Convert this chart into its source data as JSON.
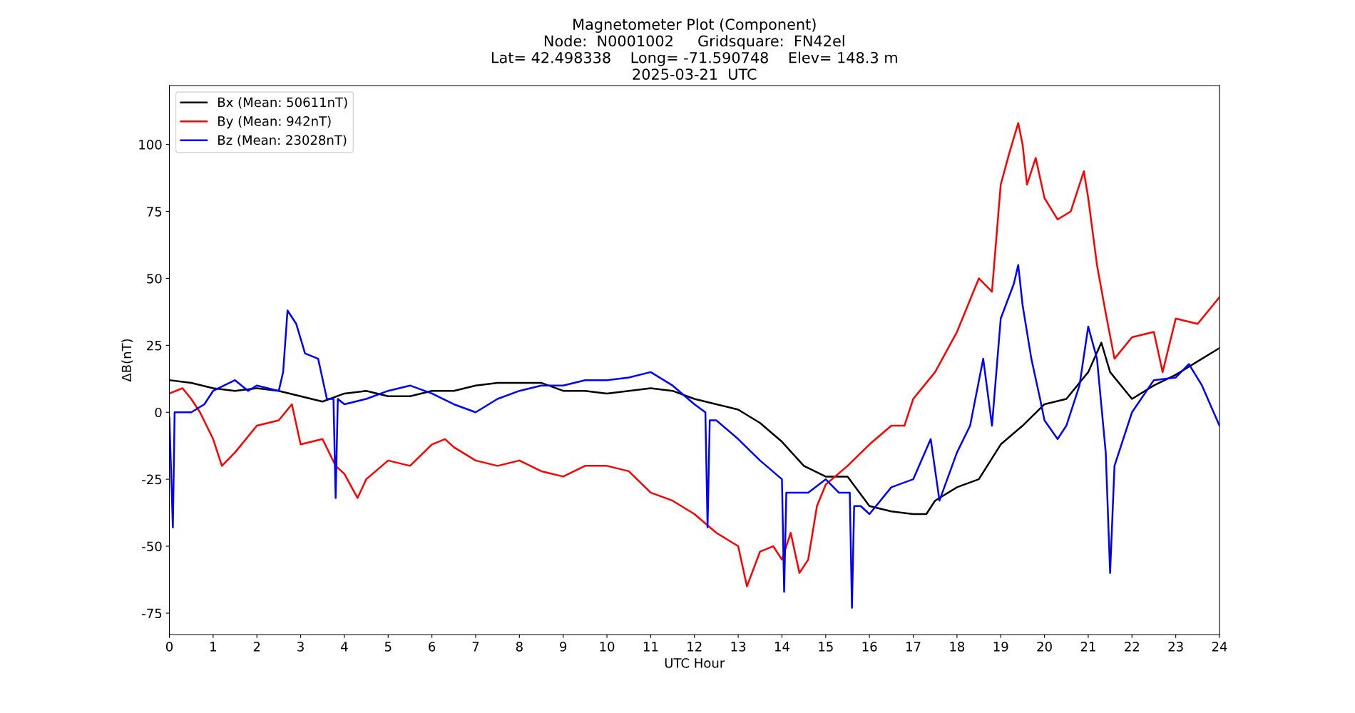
{
  "chart_data": {
    "type": "line",
    "title": "Magnetometer Plot (Component)\nNode:  N0001002     Gridsquare:  FN42el\nLat= 42.498338    Long= -71.590748    Elev= 148.3 m\n2025-03-21  UTC",
    "xlabel": "UTC Hour",
    "ylabel": "ΔB(nT)",
    "xlim": [
      0,
      24
    ],
    "xticks": [
      0,
      1,
      2,
      3,
      4,
      5,
      6,
      7,
      8,
      9,
      10,
      11,
      12,
      13,
      14,
      15,
      16,
      17,
      18,
      19,
      20,
      21,
      22,
      23,
      24
    ],
    "ylim": [
      -83,
      122
    ],
    "yticks": [
      -75,
      -50,
      -25,
      0,
      25,
      50,
      75,
      100
    ],
    "grid": false,
    "legend": "top left",
    "line_style": "solid",
    "marker": "none",
    "series": [
      {
        "name": "Bx (Mean: 50611nT)",
        "color": "#000000",
        "x": [
          0,
          0.5,
          1,
          1.5,
          2,
          2.5,
          3,
          3.5,
          4,
          4.5,
          5,
          5.5,
          6,
          6.5,
          7,
          7.5,
          8,
          8.5,
          9,
          9.5,
          10,
          10.5,
          11,
          11.5,
          12,
          12.5,
          13,
          13.5,
          14,
          14.5,
          15,
          15.5,
          16,
          16.5,
          17,
          17.3,
          17.5,
          18,
          18.5,
          19,
          19.5,
          20,
          20.5,
          21,
          21.3,
          21.5,
          22,
          22.5,
          23,
          23.5,
          24
        ],
        "values": [
          12,
          11,
          9,
          8,
          9,
          8,
          6,
          4,
          7,
          8,
          6,
          6,
          8,
          8,
          10,
          11,
          11,
          11,
          8,
          8,
          7,
          8,
          9,
          8,
          5,
          3,
          1,
          -4,
          -11,
          -20,
          -24,
          -24,
          -35,
          -37,
          -38,
          -38,
          -33,
          -28,
          -25,
          -12,
          -5,
          3,
          5,
          15,
          26,
          15,
          5,
          10,
          14,
          19,
          24
        ]
      },
      {
        "name": "By (Mean: 942nT)",
        "color": "#ff0000",
        "x": [
          0,
          0.3,
          0.5,
          0.7,
          1,
          1.2,
          1.5,
          2,
          2.5,
          2.8,
          3,
          3.5,
          3.8,
          4,
          4.3,
          4.5,
          5,
          5.5,
          6,
          6.3,
          6.5,
          7,
          7.5,
          8,
          8.5,
          9,
          9.5,
          10,
          10.5,
          11,
          11.5,
          12,
          12.5,
          13,
          13.2,
          13.5,
          13.8,
          14,
          14.2,
          14.4,
          14.6,
          14.8,
          15,
          15.5,
          16,
          16.5,
          16.8,
          17,
          17.5,
          18,
          18.5,
          18.8,
          19,
          19.2,
          19.4,
          19.5,
          19.6,
          19.8,
          20,
          20.3,
          20.6,
          20.9,
          21,
          21.2,
          21.4,
          21.6,
          22,
          22.5,
          22.7,
          23,
          23.5,
          24
        ],
        "values": [
          7,
          9,
          5,
          0,
          -10,
          -20,
          -15,
          -5,
          -3,
          3,
          -12,
          -10,
          -20,
          -23,
          -32,
          -25,
          -18,
          -20,
          -12,
          -10,
          -13,
          -18,
          -20,
          -18,
          -22,
          -24,
          -20,
          -20,
          -22,
          -30,
          -33,
          -38,
          -45,
          -50,
          -65,
          -52,
          -50,
          -55,
          -45,
          -60,
          -55,
          -35,
          -27,
          -20,
          -12,
          -5,
          -5,
          5,
          15,
          30,
          50,
          45,
          85,
          97,
          108,
          100,
          85,
          95,
          80,
          72,
          75,
          90,
          80,
          55,
          37,
          20,
          28,
          30,
          15,
          35,
          33,
          43
        ]
      },
      {
        "name": "Bz (Mean: 23028nT)",
        "color": "#0000ff",
        "x": [
          0,
          0.08,
          0.12,
          0.2,
          0.5,
          0.8,
          1,
          1.5,
          1.8,
          2,
          2.5,
          2.6,
          2.7,
          2.9,
          3.1,
          3.4,
          3.6,
          3.75,
          3.8,
          3.85,
          4,
          4.5,
          5,
          5.5,
          6,
          6.5,
          7,
          7.5,
          8,
          8.5,
          9,
          9.5,
          10,
          10.5,
          11,
          11.5,
          12,
          12.25,
          12.3,
          12.35,
          12.5,
          13,
          13.5,
          14,
          14.05,
          14.1,
          14.15,
          14.3,
          14.6,
          15,
          15.3,
          15.55,
          15.6,
          15.65,
          15.8,
          16,
          16.5,
          17,
          17.4,
          17.6,
          18,
          18.3,
          18.6,
          18.8,
          19,
          19.3,
          19.4,
          19.5,
          19.7,
          19.9,
          20,
          20.3,
          20.5,
          20.8,
          21,
          21.2,
          21.4,
          21.5,
          21.6,
          22,
          22.5,
          23,
          23.3,
          23.6,
          24
        ],
        "values": [
          -2,
          -43,
          0,
          0,
          0,
          3,
          8,
          12,
          8,
          10,
          8,
          15,
          38,
          33,
          22,
          20,
          5,
          5,
          -32,
          5,
          3,
          5,
          8,
          10,
          7,
          3,
          0,
          5,
          8,
          10,
          10,
          12,
          12,
          13,
          15,
          10,
          3,
          0,
          -43,
          -3,
          -3,
          -10,
          -18,
          -25,
          -67,
          -30,
          -30,
          -30,
          -30,
          -25,
          -30,
          -30,
          -73,
          -35,
          -35,
          -38,
          -28,
          -25,
          -10,
          -33,
          -15,
          -5,
          20,
          -5,
          35,
          48,
          55,
          40,
          20,
          5,
          -3,
          -10,
          -5,
          10,
          32,
          20,
          -15,
          -60,
          -20,
          0,
          12,
          13,
          18,
          10,
          -5
        ]
      }
    ]
  }
}
